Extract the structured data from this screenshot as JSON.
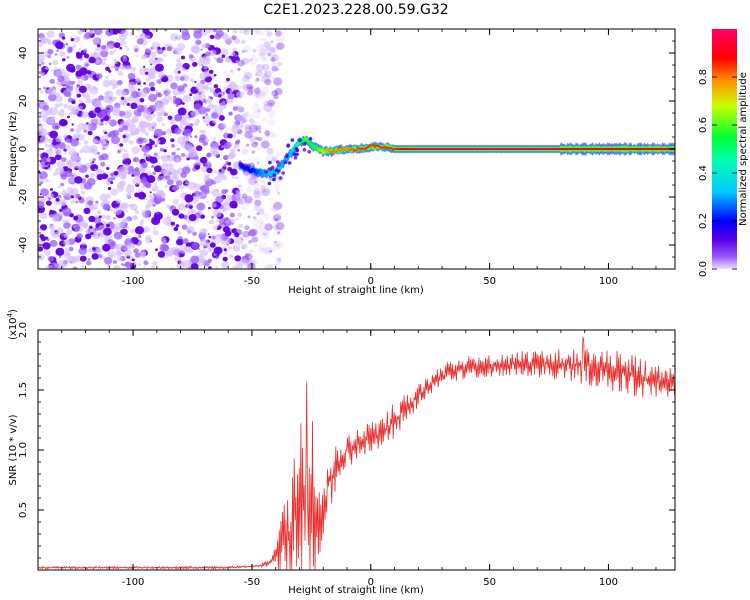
{
  "title": "C2E1.2023.228.00.59.G32",
  "chart_data": [
    {
      "type": "heatmap",
      "xlabel": "Height of straight line (km)",
      "ylabel": "Frequency (Hz)",
      "xlim": [
        -140,
        128
      ],
      "ylim": [
        -50,
        50
      ],
      "xticks": [
        -100,
        -50,
        0,
        50,
        100
      ],
      "yticks": [
        -40,
        -20,
        0,
        20,
        40
      ],
      "colorbar": {
        "label": "Normalized spectral amplitude",
        "range": [
          0,
          1
        ],
        "ticks": [
          "0.0",
          "0.2",
          "0.4",
          "0.6",
          "0.8"
        ],
        "tick_values": [
          0.0,
          0.2,
          0.4,
          0.6,
          0.8
        ],
        "colors": [
          "#e6c8ff",
          "#5a00e6",
          "#0000ff",
          "#00c8ff",
          "#00ff64",
          "#c8ff00",
          "#ff9600",
          "#ff0000",
          "#ff0066"
        ]
      },
      "noise_region": {
        "x": [
          -140,
          -50
        ],
        "y": [
          -50,
          50
        ],
        "amplitude": 0.15
      },
      "signal_ridge": {
        "x": [
          -55,
          -50,
          -45,
          -40,
          -37,
          -33,
          -30,
          -27,
          -24,
          -20,
          -17,
          -10,
          -5,
          0,
          5,
          10,
          15,
          20,
          50,
          80,
          100,
          128
        ],
        "frequency": [
          -7,
          -9,
          -10,
          -10,
          -6,
          -1,
          3,
          4,
          1,
          -1,
          -1,
          0,
          0,
          1,
          1,
          0,
          0,
          0,
          0,
          0,
          0,
          0
        ],
        "amplitude": [
          0.15,
          0.2,
          0.3,
          0.35,
          0.3,
          0.35,
          0.5,
          0.6,
          0.5,
          0.7,
          0.8,
          0.8,
          0.85,
          0.85,
          0.85,
          0.85,
          0.9,
          0.95,
          0.95,
          0.92,
          0.9,
          0.9
        ]
      }
    },
    {
      "type": "line",
      "xlabel": "Height of straight line (km)",
      "ylabel": "SNR (10 * v/v)",
      "yscale_label": "(x10",
      "yscale_exp": "4",
      "yscale_close": ")",
      "xlim": [
        -140,
        128
      ],
      "ylim": [
        0,
        2.0
      ],
      "xticks": [
        -100,
        -50,
        0,
        50,
        100
      ],
      "yticks": [
        0.5,
        1.0,
        1.5,
        2.0
      ],
      "ytick_labels": [
        "0.5",
        "1.0",
        "1.5",
        "2.0"
      ],
      "color": "#e8302f",
      "series": [
        {
          "x": [
            -140,
            -120,
            -100,
            -80,
            -60,
            -50,
            -45,
            -42,
            -40,
            -38,
            -36,
            -34,
            -32,
            -30,
            -28,
            -26,
            -24,
            -22,
            -20,
            -18,
            -15,
            -12,
            -10,
            -5,
            0,
            5,
            10,
            15,
            20,
            25,
            30,
            40,
            50,
            60,
            70,
            80,
            90,
            100,
            110,
            120,
            128
          ],
          "mean": [
            0.02,
            0.02,
            0.02,
            0.02,
            0.02,
            0.03,
            0.04,
            0.06,
            0.12,
            0.2,
            0.25,
            0.3,
            0.45,
            0.6,
            0.55,
            0.4,
            0.35,
            0.3,
            0.5,
            0.7,
            0.85,
            0.95,
            1.0,
            1.05,
            1.1,
            1.15,
            1.25,
            1.35,
            1.45,
            1.55,
            1.62,
            1.68,
            1.7,
            1.72,
            1.72,
            1.72,
            1.7,
            1.68,
            1.62,
            1.58,
            1.55
          ],
          "noise": [
            0.01,
            0.01,
            0.01,
            0.01,
            0.01,
            0.01,
            0.02,
            0.04,
            0.1,
            0.3,
            0.4,
            0.5,
            0.6,
            0.7,
            0.7,
            0.6,
            0.5,
            0.4,
            0.3,
            0.25,
            0.2,
            0.15,
            0.15,
            0.15,
            0.15,
            0.15,
            0.15,
            0.12,
            0.1,
            0.1,
            0.1,
            0.1,
            0.1,
            0.1,
            0.12,
            0.14,
            0.16,
            0.18,
            0.18,
            0.15,
            0.12
          ],
          "peak_max": 2.0
        }
      ]
    }
  ]
}
